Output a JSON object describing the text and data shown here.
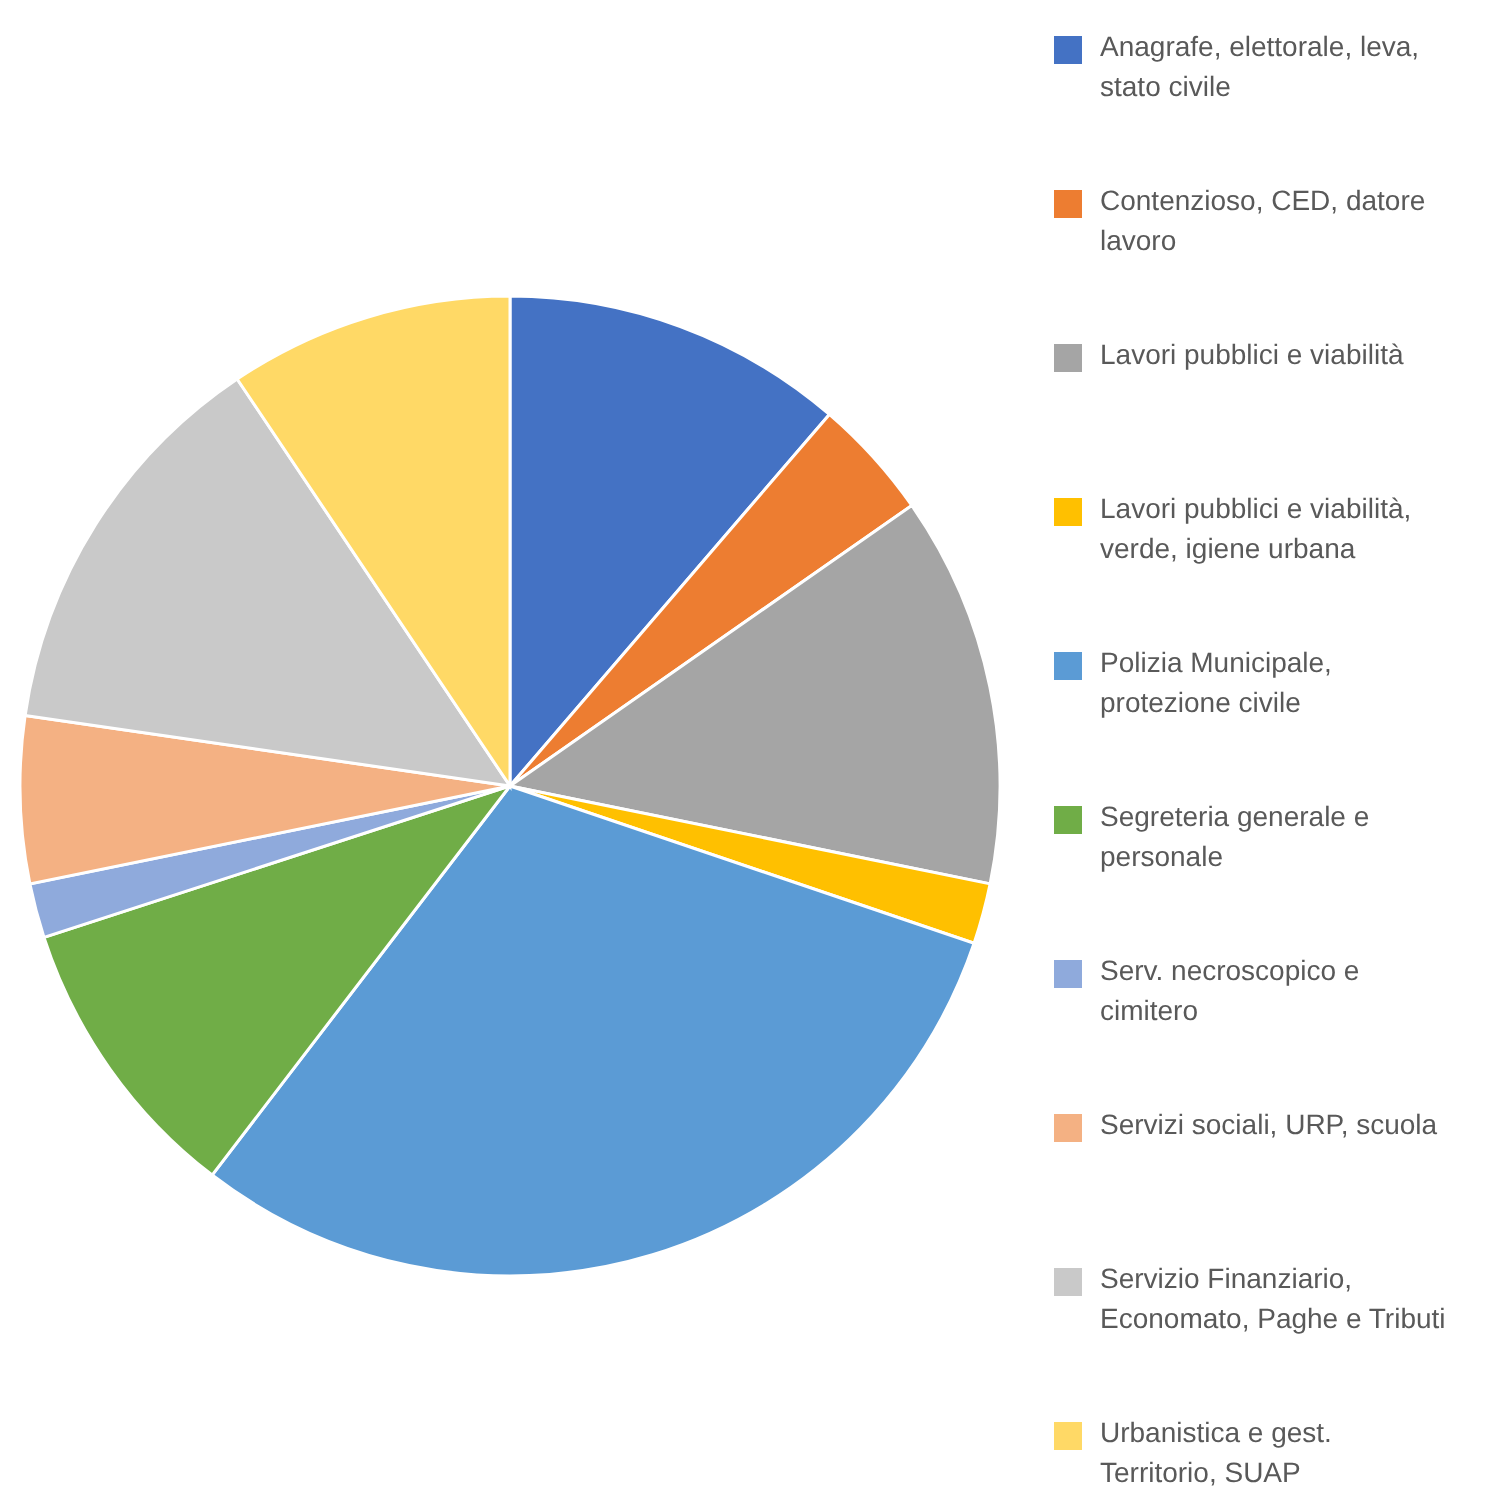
{
  "chart_data": {
    "type": "pie",
    "legend": "right",
    "categories": [
      "Anagrafe, elettorale, leva, stato civile",
      "Contenzioso, CED, datore lavoro",
      "Lavori pubblici e viabilità",
      "Lavori pubblici e viabilità, verde, igiene urbana",
      "Polizia Municipale, protezione civile",
      "Segreteria generale e personale",
      "Serv. necroscopico e cimitero",
      "Servizi sociali, URP, scuola",
      "Servizio Finanziario, Economato, Paghe e Tributi",
      "Urbanistica e gest. Territorio, SUAP"
    ],
    "values": [
      11.3,
      4,
      12.9,
      2,
      30.2,
      9.6,
      1.8,
      5.5,
      13.3,
      9.4
    ],
    "colors": [
      "#4472c4",
      "#ed7d31",
      "#a5a5a5",
      "#ffc000",
      "#5b9bd5",
      "#70ad47",
      "#8faadc",
      "#f4b183",
      "#c9c9c9",
      "#ffd966"
    ]
  }
}
